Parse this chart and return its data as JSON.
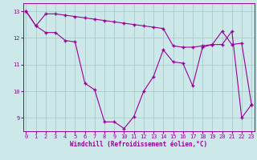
{
  "xlabel": "Windchill (Refroidissement éolien,°C)",
  "line1_x": [
    0,
    1,
    2,
    3,
    4,
    5,
    6,
    7,
    8,
    9,
    10,
    11,
    12,
    13,
    14,
    15,
    16,
    17,
    18,
    19,
    20,
    21,
    22,
    23
  ],
  "line1_y": [
    13.0,
    12.45,
    12.9,
    12.9,
    12.85,
    12.8,
    12.75,
    12.7,
    12.65,
    12.6,
    12.55,
    12.5,
    12.45,
    12.4,
    12.35,
    11.7,
    11.65,
    11.65,
    11.7,
    11.75,
    12.25,
    11.75,
    11.8,
    9.5
  ],
  "line2_x": [
    0,
    1,
    2,
    3,
    4,
    5,
    6,
    7,
    8,
    9,
    10,
    11,
    12,
    13,
    14,
    15,
    16,
    17,
    18,
    19,
    20,
    21,
    22,
    23
  ],
  "line2_y": [
    13.0,
    12.45,
    12.2,
    12.2,
    11.9,
    11.85,
    10.3,
    10.05,
    8.85,
    8.85,
    8.6,
    9.05,
    10.0,
    10.55,
    11.55,
    11.1,
    11.05,
    10.2,
    11.65,
    11.75,
    11.75,
    12.25,
    9.0,
    9.5
  ],
  "line_color": "#990099",
  "bg_color": "#cce8e8",
  "grid_color": "#aacccc",
  "ylim": [
    8.5,
    13.3
  ],
  "xlim": [
    -0.3,
    23.3
  ],
  "xticks": [
    0,
    1,
    2,
    3,
    4,
    5,
    6,
    7,
    8,
    9,
    10,
    11,
    12,
    13,
    14,
    15,
    16,
    17,
    18,
    19,
    20,
    21,
    22,
    23
  ],
  "yticks": [
    9,
    10,
    11,
    12,
    13
  ]
}
